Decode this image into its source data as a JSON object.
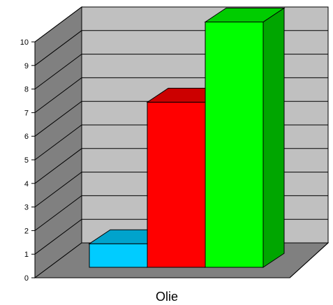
{
  "chart_data": {
    "type": "bar",
    "style": "3d",
    "categories": [
      "Olie"
    ],
    "series": [
      {
        "values": [
          1
        ],
        "color": "#00ccff"
      },
      {
        "values": [
          7
        ],
        "color": "#ff0000"
      },
      {
        "values": [
          10.4
        ],
        "color": "#00ff00"
      }
    ],
    "title": "",
    "xlabel": "",
    "ylabel": "",
    "ylim": [
      0,
      10
    ],
    "yticks": [
      0,
      1,
      2,
      3,
      4,
      5,
      6,
      7,
      8,
      9,
      10
    ],
    "grid": true,
    "legend": "none",
    "colors": {
      "back_wall": "#c0c0c0",
      "side_wall": "#808080",
      "floor": "#808080",
      "grid_line": "#000000"
    }
  }
}
